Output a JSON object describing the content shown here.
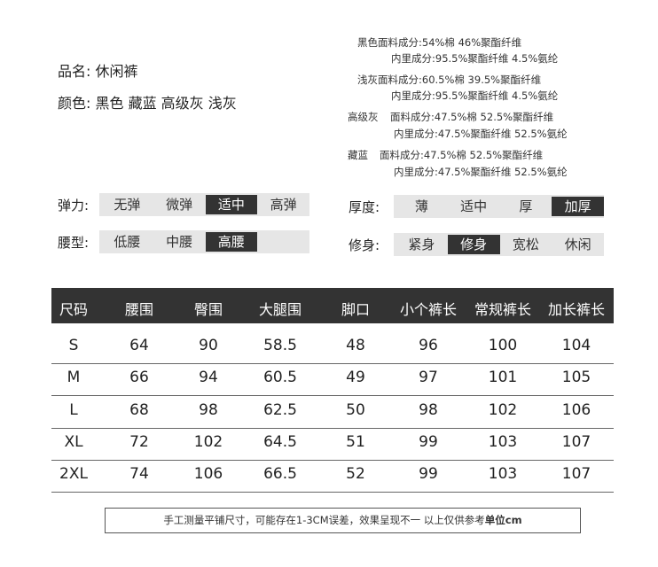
{
  "product": {
    "name_label": "品名:",
    "name": "休闲裤",
    "color_label": "颜色:",
    "colors": "黑色 藏蓝 高级灰 浅灰"
  },
  "composition": [
    {
      "color": "黑色",
      "outer": "面料成分:54%棉 46%聚酯纤维",
      "lining": "内里成分:95.5%聚酯纤维 4.5%氨纶"
    },
    {
      "color": "浅灰",
      "outer": "面料成分:60.5%棉 39.5%聚酯纤维",
      "lining": "内里成分:95.5%聚酯纤维 4.5%氨纶"
    },
    {
      "color": "高级灰",
      "outer": "面料成分:47.5%棉 52.5%聚酯纤维",
      "lining": "内里成分:47.5%聚酯纤维 52.5%氨纶"
    },
    {
      "color": "藏蓝",
      "outer": "面料成分:47.5%棉 52.5%聚酯纤维",
      "lining": "内里成分:47.5%聚酯纤维 52.5%氨纶"
    }
  ],
  "attributes": [
    {
      "label": "弹力:",
      "options": [
        "无弹",
        "微弹",
        "适中",
        "高弹"
      ],
      "selected": "适中"
    },
    {
      "label": "腰型:",
      "options": [
        "低腰",
        "中腰",
        "高腰",
        ""
      ],
      "selected": "高腰"
    },
    {
      "label": "厚度:",
      "options": [
        "薄",
        "适中",
        "厚",
        "加厚"
      ],
      "selected": "加厚"
    },
    {
      "label": "修身:",
      "options": [
        "紧身",
        "修身",
        "宽松",
        "休闲"
      ],
      "selected": "修身"
    }
  ],
  "size_table": {
    "headers": [
      "尺码",
      "腰围",
      "臀围",
      "大腿围",
      "脚口",
      "小个裤长",
      "常规裤长",
      "加长裤长"
    ],
    "rows": [
      [
        "S",
        "64",
        "90",
        "58.5",
        "48",
        "96",
        "100",
        "104"
      ],
      [
        "M",
        "66",
        "94",
        "60.5",
        "49",
        "97",
        "101",
        "105"
      ],
      [
        "L",
        "68",
        "98",
        "62.5",
        "50",
        "98",
        "102",
        "106"
      ],
      [
        "XL",
        "72",
        "102",
        "64.5",
        "51",
        "99",
        "103",
        "107"
      ],
      [
        "2XL",
        "74",
        "106",
        "66.5",
        "52",
        "99",
        "103",
        "107"
      ]
    ]
  },
  "note": {
    "text": "手工测量平铺尺寸，可能存在1-3CM误差，效果呈现不一 以上仅供参考",
    "unit": "单位cm"
  }
}
